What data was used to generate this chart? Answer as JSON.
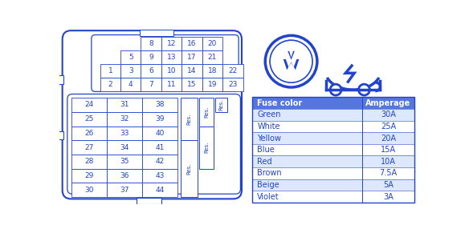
{
  "bg_color": "#ffffff",
  "blue": "#2244cc",
  "light_blue_fill": "#dde8ff",
  "table_header_bg": "#5577dd",
  "top_row0": [
    "8",
    "12",
    "16",
    "20"
  ],
  "top_row1": [
    "5",
    "9",
    "13",
    "17",
    "21"
  ],
  "top_row2": [
    "1",
    "3",
    "6",
    "10",
    "14",
    "18",
    "22"
  ],
  "top_row3": [
    "2",
    "4",
    "7",
    "11",
    "15",
    "19",
    "23"
  ],
  "bot_col0": [
    "24",
    "25",
    "26",
    "27",
    "28",
    "29",
    "30"
  ],
  "bot_col1": [
    "31",
    "32",
    "33",
    "34",
    "35",
    "36",
    "37"
  ],
  "bot_col2": [
    "38",
    "39",
    "40",
    "41",
    "42",
    "43",
    "44"
  ],
  "fuse_headers": [
    "Fuse color",
    "Amperage"
  ],
  "fuse_rows": [
    [
      "Green",
      "30A"
    ],
    [
      "White",
      "25A"
    ],
    [
      "Yellow",
      "20A"
    ],
    [
      "Blue",
      "15A"
    ],
    [
      "Red",
      "10A"
    ],
    [
      "Brown",
      "7.5A"
    ],
    [
      "Beige",
      "5A"
    ],
    [
      "Violet",
      "3A"
    ]
  ]
}
